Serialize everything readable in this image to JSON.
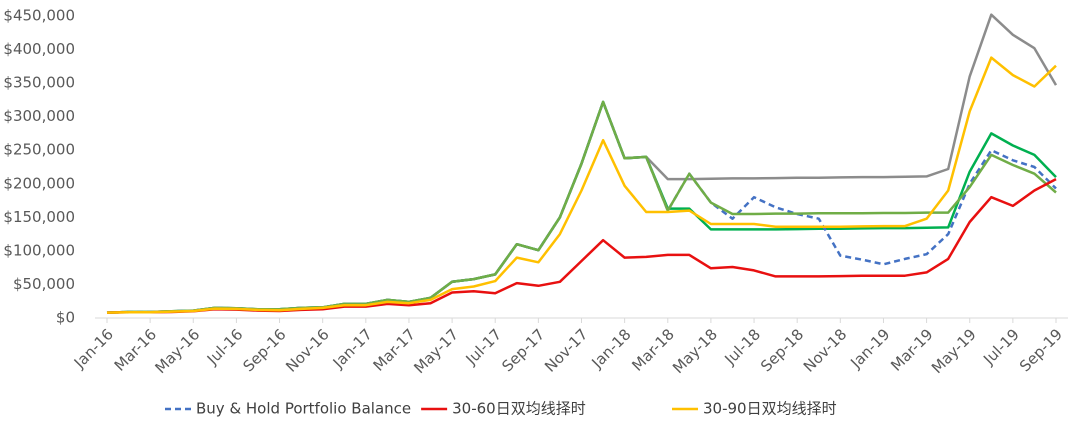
{
  "chart_data": {
    "type": "line",
    "categories": [
      "Jan-16",
      null,
      "Mar-16",
      null,
      "May-16",
      null,
      "Jul-16",
      null,
      "Sep-16",
      null,
      "Nov-16",
      null,
      "Jan-17",
      null,
      "Mar-17",
      null,
      "May-17",
      null,
      "Jul-17",
      null,
      "Sep-17",
      null,
      "Nov-17",
      null,
      "Jan-18",
      null,
      "Mar-18",
      null,
      "May-18",
      null,
      "Jul-18",
      null,
      "Sep-18",
      null,
      "Nov-18",
      null,
      "Jan-19",
      null,
      "Mar-19",
      null,
      "May-19",
      null,
      "Jul-19",
      null,
      "Sep-19"
    ],
    "series": [
      {
        "color": "#8c8c8c",
        "values": [
          8000,
          9000,
          9000,
          10000,
          11000,
          15000,
          14500,
          13000,
          13000,
          15000,
          16000,
          21000,
          21000,
          27000,
          24000,
          30000,
          54000,
          58000,
          65000,
          110000,
          101000,
          150000,
          230000,
          322000,
          238000,
          240000,
          207000,
          207000,
          207500,
          208000,
          208000,
          208500,
          209000,
          209000,
          209500,
          210000,
          210000,
          210500,
          211000,
          222000,
          360000,
          452000,
          422000,
          402000,
          347000
        ]
      },
      {
        "color": "#00b050",
        "values": [
          8000,
          9000,
          9000,
          10000,
          11000,
          15000,
          14500,
          13000,
          13000,
          15000,
          16000,
          21000,
          21000,
          27000,
          24000,
          30000,
          54000,
          58000,
          65000,
          110000,
          101000,
          150000,
          230000,
          322000,
          238000,
          240000,
          163000,
          163000,
          132000,
          132000,
          132000,
          132000,
          132500,
          133000,
          133000,
          133500,
          134000,
          134000,
          134500,
          135000,
          218000,
          275000,
          257000,
          243000,
          210000
        ]
      },
      {
        "name": "Buy & Hold Portfolio Balance",
        "color": "#4472c4",
        "dashed": true,
        "values": [
          8000,
          9000,
          9000,
          10000,
          11000,
          15000,
          14500,
          13000,
          13000,
          15000,
          16000,
          21000,
          21000,
          27000,
          24000,
          30000,
          54000,
          58000,
          65000,
          110000,
          101000,
          150000,
          230000,
          322000,
          238000,
          240000,
          160000,
          215000,
          172000,
          148000,
          180000,
          165000,
          155000,
          148000,
          93000,
          87000,
          80000,
          88000,
          95000,
          125000,
          200000,
          250000,
          235000,
          225000,
          193000
        ]
      },
      {
        "color": "#70ad47",
        "values": [
          8000,
          9000,
          9000,
          10000,
          11000,
          15000,
          14500,
          13000,
          13000,
          15000,
          16000,
          21000,
          21000,
          27000,
          24000,
          30000,
          54000,
          58000,
          65000,
          110000,
          101000,
          150000,
          230000,
          322000,
          238000,
          240000,
          160000,
          215000,
          172000,
          155000,
          155000,
          155500,
          155500,
          156000,
          156000,
          156000,
          156500,
          156500,
          157000,
          157000,
          195000,
          243000,
          228000,
          215000,
          187000
        ]
      },
      {
        "name": "30-60日双均线择时",
        "color": "#e81010",
        "values": [
          8000,
          8500,
          8500,
          9000,
          10000,
          13000,
          12500,
          11000,
          10500,
          12000,
          13000,
          17000,
          17000,
          21000,
          19000,
          22000,
          38000,
          40000,
          37000,
          52000,
          48000,
          54000,
          85000,
          116000,
          90000,
          91000,
          94000,
          94000,
          74000,
          76000,
          71000,
          62000,
          62000,
          62000,
          62500,
          63000,
          63000,
          63000,
          68000,
          88000,
          143000,
          180000,
          167000,
          190000,
          207000
        ]
      },
      {
        "name": "30-90日双均线择时",
        "color": "#ffc000",
        "values": [
          8000,
          8500,
          8500,
          9500,
          10500,
          14000,
          13500,
          12000,
          11500,
          13500,
          15000,
          19000,
          19000,
          24000,
          22000,
          27000,
          43000,
          47000,
          55000,
          90000,
          83000,
          125000,
          190000,
          265000,
          197000,
          158000,
          158000,
          160000,
          140000,
          140000,
          140000,
          136000,
          136000,
          136000,
          136000,
          136500,
          137000,
          137000,
          148000,
          190000,
          308000,
          388000,
          362000,
          345000,
          376000
        ]
      }
    ],
    "ylim": [
      0,
      450000
    ],
    "yticks": [
      {
        "value": 0,
        "label": "$0"
      },
      {
        "value": 50000,
        "label": "$50,000"
      },
      {
        "value": 100000,
        "label": "$100,000"
      },
      {
        "value": 150000,
        "label": "$150,000"
      },
      {
        "value": 200000,
        "label": "$200,000"
      },
      {
        "value": 250000,
        "label": "$250,000"
      },
      {
        "value": 300000,
        "label": "$300,000"
      },
      {
        "value": 350000,
        "label": "$350,000"
      },
      {
        "value": 400000,
        "label": "$400,000"
      },
      {
        "value": 450000,
        "label": "$450,000"
      }
    ],
    "grid": false,
    "legend": "bottom"
  }
}
